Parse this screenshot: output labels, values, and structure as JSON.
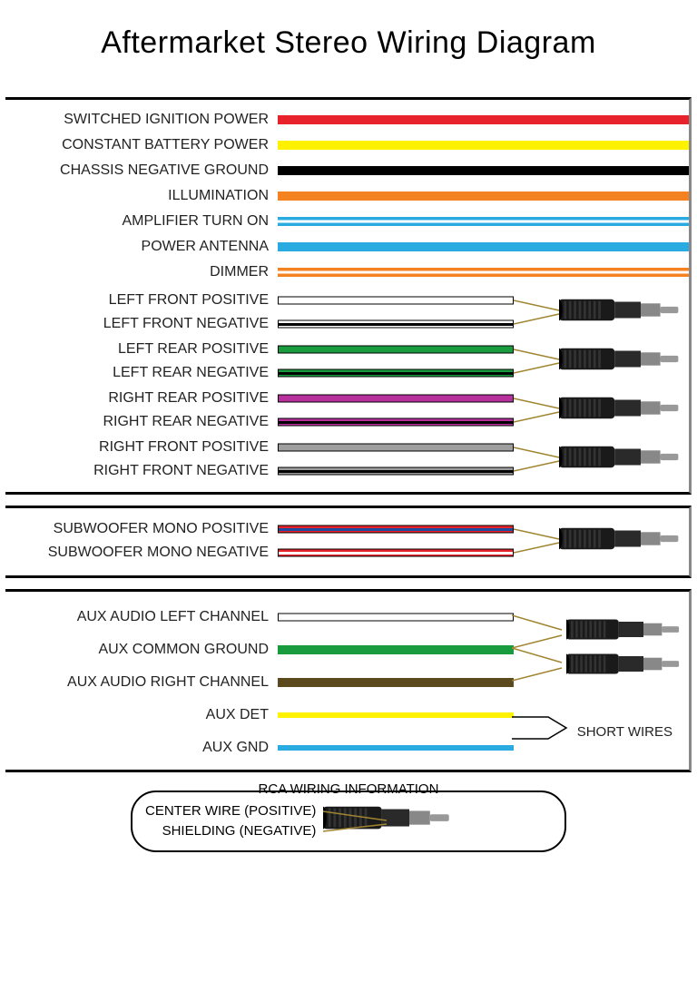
{
  "title": "Aftermarket Stereo Wiring Diagram",
  "power_wires": [
    {
      "label": "SWITCHED IGNITION POWER",
      "color": "#e8222a"
    },
    {
      "label": "CONSTANT BATTERY POWER",
      "color": "#fff200"
    },
    {
      "label": "CHASSIS NEGATIVE GROUND",
      "color": "#000000"
    },
    {
      "label": "ILLUMINATION",
      "color": "#f58220"
    },
    {
      "label": "AMPLIFIER TURN ON",
      "color": "#29abe2",
      "stripe": "#ffffff"
    },
    {
      "label": "POWER ANTENNA",
      "color": "#29abe2"
    },
    {
      "label": "DIMMER",
      "color": "#f58220",
      "stripe": "#ffffff"
    }
  ],
  "speaker_pairs": [
    {
      "pos": "LEFT FRONT POSITIVE",
      "neg": "LEFT FRONT NEGATIVE",
      "color": "#ffffff",
      "stripe": "#000000"
    },
    {
      "pos": "LEFT REAR POSITIVE",
      "neg": "LEFT REAR NEGATIVE",
      "color": "#189c3e",
      "stripe": "#000000"
    },
    {
      "pos": "RIGHT REAR POSITIVE",
      "neg": "RIGHT REAR NEGATIVE",
      "color": "#b8309c",
      "stripe": "#000000"
    },
    {
      "pos": "RIGHT FRONT POSITIVE",
      "neg": "RIGHT FRONT NEGATIVE",
      "color": "#9e9e9e",
      "stripe": "#000000"
    }
  ],
  "subwoofer": {
    "pos": "SUBWOOFER MONO POSITIVE",
    "neg": "SUBWOOFER MONO NEGATIVE",
    "pos_color": "#e8222a",
    "pos_stripe": "#1b4aa0",
    "neg_color": "#e8222a",
    "neg_stripe": "#ffffff"
  },
  "aux": {
    "rows": [
      {
        "label": "AUX AUDIO LEFT CHANNEL",
        "color": "#ffffff",
        "border": true,
        "h": 9
      },
      {
        "label": "AUX COMMON GROUND",
        "color": "#189c3e",
        "h": 10
      },
      {
        "label": "AUX AUDIO RIGHT CHANNEL",
        "color": "#5a4a1e",
        "h": 10
      },
      {
        "label": "AUX DET",
        "color": "#fff200",
        "h": 6
      },
      {
        "label": "AUX GND",
        "color": "#29abe2",
        "h": 6
      }
    ],
    "note": "SHORT WIRES"
  },
  "rca_info": {
    "title": "RCA WIRING INFORMATION",
    "center": "CENTER WIRE (POSITIVE)",
    "shield": "SHIELDING (NEGATIVE)"
  },
  "colors": {
    "lead_line": "#a08530"
  }
}
